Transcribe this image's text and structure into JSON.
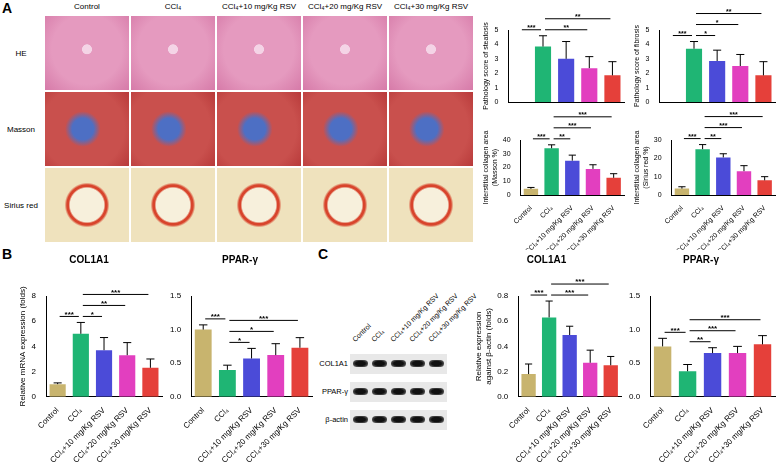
{
  "panel_labels": [
    "A",
    "B",
    "C"
  ],
  "histology": {
    "columns": [
      "Control",
      "CCl₄",
      "CCl₄+10 mg/Kg RSV",
      "CCl₄+20 mg/Kg RSV",
      "CCl₄+30 mg/Kg RSV"
    ],
    "rows": [
      "HE",
      "Masson",
      "Sirius red"
    ]
  },
  "western_blot": {
    "lanes": [
      "Control",
      "CCl₄",
      "CCl₄+10 mg/Kg RSV",
      "CCl₄+20 mg/Kg RSV",
      "CCl₄+30 mg/Kg RSV"
    ],
    "bands": [
      "COL1A1",
      "PPAR-γ",
      "β-actin"
    ]
  },
  "chart_data": [
    {
      "type": "bar",
      "y_label": "Pathology score of steatosis",
      "categories": [
        "Control",
        "CCl₄",
        "CCl₄+10 mg/Kg RSV",
        "CCl₄+20 mg/Kg RSV",
        "CCl₄+30 mg/Kg RSV"
      ],
      "values": [
        0,
        3.85,
        3.0,
        2.35,
        1.85
      ],
      "errors": [
        0,
        0.75,
        1.2,
        0.8,
        0.95
      ],
      "colors": [
        "#c8b46e",
        "#1fb574",
        "#4b4bd8",
        "#e23fbf",
        "#e5403a"
      ],
      "ylim": [
        0,
        5
      ],
      "yticks": [
        0,
        1,
        2,
        3,
        4,
        5
      ],
      "grid": false,
      "tick_labels": "y",
      "significance": [
        {
          "groups": [
            "Control",
            "CCl₄"
          ],
          "label": "***"
        },
        {
          "groups": [
            "CCl₄",
            "CCl₄+20 mg/Kg RSV"
          ],
          "label": "**"
        },
        {
          "groups": [
            "CCl₄",
            "CCl₄+30 mg/Kg RSV"
          ],
          "label": "**"
        }
      ]
    },
    {
      "type": "bar",
      "y_label": "Pathology score of fibrosis",
      "categories": [
        "Control",
        "CCl₄",
        "CCl₄+10 mg/Kg RSV",
        "CCl₄+20 mg/Kg RSV",
        "CCl₄+30 mg/Kg RSV"
      ],
      "values": [
        0,
        3.7,
        2.85,
        2.5,
        1.85
      ],
      "errors": [
        0,
        0.5,
        0.75,
        0.8,
        0.95
      ],
      "colors": [
        "#c8b46e",
        "#1fb574",
        "#4b4bd8",
        "#e23fbf",
        "#e5403a"
      ],
      "ylim": [
        0,
        5
      ],
      "yticks": [
        0,
        1,
        2,
        3,
        4,
        5
      ],
      "grid": false,
      "tick_labels": "y",
      "significance": [
        {
          "groups": [
            "Control",
            "CCl₄"
          ],
          "label": "***"
        },
        {
          "groups": [
            "CCl₄",
            "CCl₄+10 mg/Kg RSV"
          ],
          "label": "*"
        },
        {
          "groups": [
            "CCl₄",
            "CCl₄+20 mg/Kg RSV"
          ],
          "label": "*"
        },
        {
          "groups": [
            "CCl₄",
            "CCl₄+30 mg/Kg RSV"
          ],
          "label": "**"
        }
      ]
    },
    {
      "type": "bar",
      "y_label": [
        "Interstitial collagen area",
        "(Masson %)"
      ],
      "categories": [
        "Control",
        "CCl₄",
        "CCl₄+10 mg/Kg RSV",
        "CCl₄+20 mg/Kg RSV",
        "CCl₄+30 mg/Kg RSV"
      ],
      "values": [
        4.5,
        34,
        25,
        19,
        12.5
      ],
      "errors": [
        1,
        2.5,
        4,
        3,
        3
      ],
      "colors": [
        "#c8b46e",
        "#1fb574",
        "#4b4bd8",
        "#e23fbf",
        "#e5403a"
      ],
      "ylim": [
        0,
        40
      ],
      "yticks": [
        0,
        10,
        20,
        30,
        40
      ],
      "grid": false,
      "significance": [
        {
          "groups": [
            "Control",
            "CCl₄"
          ],
          "label": "***"
        },
        {
          "groups": [
            "CCl₄",
            "CCl₄+10 mg/Kg RSV"
          ],
          "label": "**"
        },
        {
          "groups": [
            "CCl₄",
            "CCl₄+20 mg/Kg RSV"
          ],
          "label": "***"
        },
        {
          "groups": [
            "CCl₄",
            "CCl₄+30 mg/Kg RSV"
          ],
          "label": "***"
        }
      ]
    },
    {
      "type": "bar",
      "y_label": [
        "Interstitial collagen area",
        "(Sirius red %)"
      ],
      "categories": [
        "Control",
        "CCl₄",
        "CCl₄+10 mg/Kg RSV",
        "CCl₄+20 mg/Kg RSV",
        "CCl₄+30 mg/Kg RSV"
      ],
      "values": [
        3.5,
        25,
        20.5,
        13,
        8
      ],
      "errors": [
        1,
        2.5,
        2,
        3,
        2
      ],
      "colors": [
        "#c8b46e",
        "#1fb574",
        "#4b4bd8",
        "#e23fbf",
        "#e5403a"
      ],
      "ylim": [
        0,
        30
      ],
      "yticks": [
        0,
        10,
        20,
        30
      ],
      "grid": false,
      "significance": [
        {
          "groups": [
            "Control",
            "CCl₄"
          ],
          "label": "***"
        },
        {
          "groups": [
            "CCl₄",
            "CCl₄+10 mg/Kg RSV"
          ],
          "label": "**"
        },
        {
          "groups": [
            "CCl₄",
            "CCl₄+20 mg/Kg RSV"
          ],
          "label": "***"
        },
        {
          "groups": [
            "CCl₄",
            "CCl₄+30 mg/Kg RSV"
          ],
          "label": "***"
        }
      ]
    },
    {
      "type": "bar",
      "title": "COL1A1",
      "y_label": "Relative mRNA expression (folds)",
      "categories": [
        "Control",
        "CCl₄",
        "CCl₄+10 mg/Kg RSV",
        "CCl₄+20 mg/Kg RSV",
        "CCl₄+30 mg/Kg RSV"
      ],
      "values": [
        1,
        5,
        3.7,
        3.3,
        2.3
      ],
      "errors": [
        0.1,
        0.9,
        1.0,
        1.0,
        0.7
      ],
      "colors": [
        "#c8b46e",
        "#1fb574",
        "#4b4bd8",
        "#e23fbf",
        "#e5403a"
      ],
      "ylim": [
        0,
        8
      ],
      "yticks": [
        0,
        2,
        4,
        6,
        8
      ],
      "grid": false,
      "significance": [
        {
          "groups": [
            "Control",
            "CCl₄"
          ],
          "label": "***"
        },
        {
          "groups": [
            "CCl₄",
            "CCl₄+10 mg/Kg RSV"
          ],
          "label": "*"
        },
        {
          "groups": [
            "CCl₄",
            "CCl₄+20 mg/Kg RSV"
          ],
          "label": "**"
        },
        {
          "groups": [
            "CCl₄",
            "CCl₄+30 mg/Kg RSV"
          ],
          "label": "***"
        }
      ]
    },
    {
      "type": "bar",
      "title": "PPAR-γ",
      "categories": [
        "Control",
        "CCl₄",
        "CCl₄+10 mg/Kg RSV",
        "CCl₄+20 mg/Kg RSV",
        "CCl₄+30 mg/Kg RSV"
      ],
      "values": [
        1.0,
        0.4,
        0.57,
        0.62,
        0.73
      ],
      "errors": [
        0.07,
        0.07,
        0.15,
        0.17,
        0.15
      ],
      "colors": [
        "#c8b46e",
        "#1fb574",
        "#4b4bd8",
        "#e23fbf",
        "#e5403a"
      ],
      "ylim": [
        0,
        1.5
      ],
      "yticks": [
        {
          "value": 0,
          "label": "0.0"
        },
        0.5,
        {
          "value": 1,
          "label": "1.0"
        },
        1.5
      ],
      "grid": false,
      "significance": [
        {
          "groups": [
            "Control",
            "CCl₄"
          ],
          "label": "***"
        },
        {
          "groups": [
            "CCl₄",
            "CCl₄+10 mg/Kg RSV"
          ],
          "label": "*"
        },
        {
          "groups": [
            "CCl₄",
            "CCl₄+20 mg/Kg RSV"
          ],
          "label": "*"
        },
        {
          "groups": [
            "CCl₄",
            "CCl₄+30 mg/Kg RSV"
          ],
          "label": "***"
        }
      ]
    },
    {
      "type": "bar",
      "title": "COL1A1",
      "y_label": [
        "Relative expression",
        "against β-actin (folds)"
      ],
      "categories": [
        "Control",
        "CCl₄",
        "CCl₄+10 mg/Kg RSV",
        "CCl₄+20 mg/Kg RSV",
        "CCl₄+30 mg/Kg RSV"
      ],
      "values": [
        0.18,
        0.63,
        0.49,
        0.27,
        0.25
      ],
      "errors": [
        0.08,
        0.13,
        0.07,
        0.1,
        0.07
      ],
      "colors": [
        "#c8b46e",
        "#1fb574",
        "#4b4bd8",
        "#e23fbf",
        "#e5403a"
      ],
      "ylim": [
        0,
        0.8
      ],
      "yticks": [
        {
          "value": 0,
          "label": "0.0"
        },
        0.2,
        0.4,
        0.6,
        0.8
      ],
      "grid": false,
      "significance": [
        {
          "groups": [
            "Control",
            "CCl₄"
          ],
          "label": "***"
        },
        {
          "groups": [
            "CCl₄",
            "CCl₄+20 mg/Kg RSV"
          ],
          "label": "***"
        },
        {
          "groups": [
            "CCl₄",
            "CCl₄+30 mg/Kg RSV"
          ],
          "label": "***"
        }
      ]
    },
    {
      "type": "bar",
      "title": "PPAR-γ",
      "categories": [
        "Control",
        "CCl₄",
        "CCl₄+10 mg/Kg RSV",
        "CCl₄+20 mg/Kg RSV",
        "CCl₄+30 mg/Kg RSV"
      ],
      "values": [
        0.75,
        0.38,
        0.65,
        0.65,
        0.78
      ],
      "errors": [
        0.12,
        0.1,
        0.08,
        0.1,
        0.13
      ],
      "colors": [
        "#c8b46e",
        "#1fb574",
        "#4b4bd8",
        "#e23fbf",
        "#e5403a"
      ],
      "ylim": [
        0,
        1.5
      ],
      "yticks": [
        {
          "value": 0,
          "label": "0.0"
        },
        0.5,
        {
          "value": 1,
          "label": "1.0"
        },
        1.5
      ],
      "grid": false,
      "significance": [
        {
          "groups": [
            "Control",
            "CCl₄"
          ],
          "label": "***"
        },
        {
          "groups": [
            "CCl₄",
            "CCl₄+10 mg/Kg RSV"
          ],
          "label": "**"
        },
        {
          "groups": [
            "CCl₄",
            "CCl₄+20 mg/Kg RSV"
          ],
          "label": "***"
        },
        {
          "groups": [
            "CCl₄",
            "CCl₄+30 mg/Kg RSV"
          ],
          "label": "***"
        }
      ]
    }
  ]
}
